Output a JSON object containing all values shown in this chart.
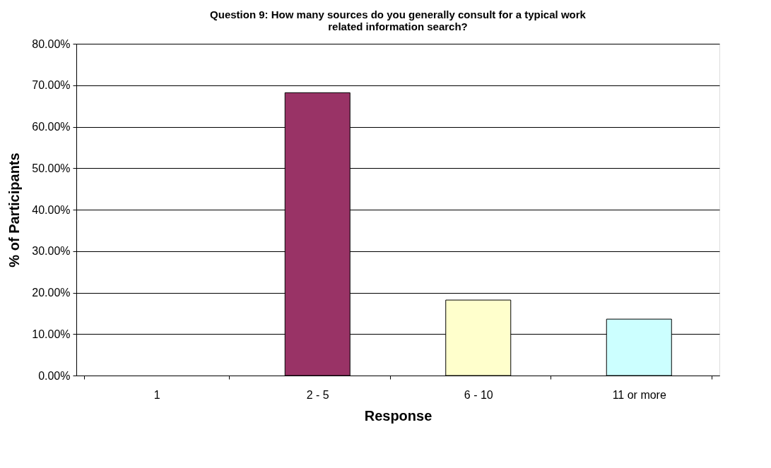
{
  "chart_data": {
    "type": "bar",
    "title": "Question 9: How many sources do you generally consult for a typical work related information search?",
    "xlabel": "Response",
    "ylabel": "% of Participants",
    "categories": [
      "1",
      "2 - 5",
      "6 - 10",
      "11 or more"
    ],
    "values": [
      0,
      68.2,
      18.2,
      13.6
    ],
    "colors": [
      null,
      "#993366",
      "#ffffcc",
      "#ccffff"
    ],
    "ylim": [
      0,
      80
    ],
    "yticks": [
      {
        "value": 0,
        "label": "0.00%"
      },
      {
        "value": 10,
        "label": "10.00%"
      },
      {
        "value": 20,
        "label": "20.00%"
      },
      {
        "value": 30,
        "label": "30.00%"
      },
      {
        "value": 40,
        "label": "40.00%"
      },
      {
        "value": 50,
        "label": "50.00%"
      },
      {
        "value": 60,
        "label": "60.00%"
      },
      {
        "value": 70,
        "label": "70.00%"
      },
      {
        "value": 80,
        "label": "80.00%"
      }
    ],
    "grid": "y",
    "legend": false
  }
}
